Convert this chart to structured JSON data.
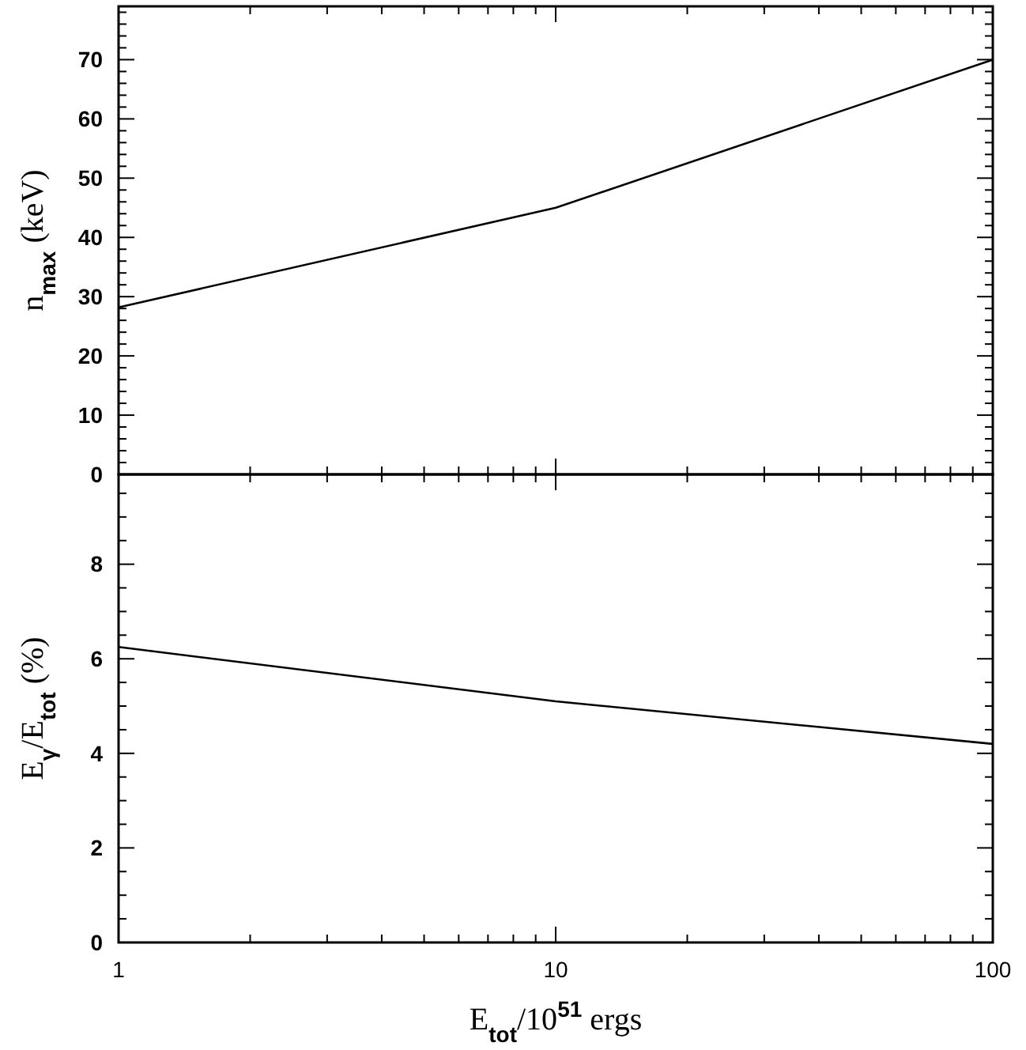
{
  "chart_data": [
    {
      "type": "line",
      "ylabel": "n$_{max}$ (keV)",
      "log": "x",
      "xlim": [
        1,
        100
      ],
      "ylim": [
        0,
        79
      ],
      "tick_labels": "y",
      "xticks": [
        1,
        {
          "value": 2,
          "label": null
        },
        {
          "value": 3,
          "label": null
        },
        {
          "value": 4,
          "label": null
        },
        {
          "value": 5,
          "label": null
        },
        {
          "value": 6,
          "label": null
        },
        {
          "value": 7,
          "label": null
        },
        {
          "value": 8,
          "label": null
        },
        {
          "value": 9,
          "label": null
        },
        10,
        {
          "value": 20,
          "label": null
        },
        {
          "value": 30,
          "label": null
        },
        {
          "value": 40,
          "label": null
        },
        {
          "value": 50,
          "label": null
        },
        {
          "value": 60,
          "label": null
        },
        {
          "value": 70,
          "label": null
        },
        {
          "value": 80,
          "label": null
        },
        {
          "value": 90,
          "label": null
        },
        100
      ],
      "yticks": [
        0,
        {
          "value": 2,
          "label": null
        },
        {
          "value": 4,
          "label": null
        },
        {
          "value": 6,
          "label": null
        },
        {
          "value": 8,
          "label": null
        },
        10,
        {
          "value": 12,
          "label": null
        },
        {
          "value": 14,
          "label": null
        },
        {
          "value": 16,
          "label": null
        },
        {
          "value": 18,
          "label": null
        },
        20,
        {
          "value": 22,
          "label": null
        },
        {
          "value": 24,
          "label": null
        },
        {
          "value": 26,
          "label": null
        },
        {
          "value": 28,
          "label": null
        },
        30,
        {
          "value": 32,
          "label": null
        },
        {
          "value": 34,
          "label": null
        },
        {
          "value": 36,
          "label": null
        },
        {
          "value": 38,
          "label": null
        },
        40,
        {
          "value": 42,
          "label": null
        },
        {
          "value": 44,
          "label": null
        },
        {
          "value": 46,
          "label": null
        },
        {
          "value": 48,
          "label": null
        },
        50,
        {
          "value": 52,
          "label": null
        },
        {
          "value": 54,
          "label": null
        },
        {
          "value": 56,
          "label": null
        },
        {
          "value": 58,
          "label": null
        },
        60,
        {
          "value": 62,
          "label": null
        },
        {
          "value": 64,
          "label": null
        },
        {
          "value": 66,
          "label": null
        },
        {
          "value": 68,
          "label": null
        },
        70,
        {
          "value": 72,
          "label": null
        },
        {
          "value": 74,
          "label": null
        },
        {
          "value": 76,
          "label": null
        },
        {
          "value": 78,
          "label": null
        }
      ],
      "x": [
        1,
        10,
        100
      ],
      "series": [
        {
          "color": "#000000",
          "values": [
            28.2,
            45,
            70
          ]
        }
      ],
      "line_style": "solid"
    },
    {
      "type": "line",
      "xlabel": "E$_{tot}$/10$^{51}$ ergs",
      "ylabel": "E$_{γ}$/E$_{tot}$ (%)",
      "log": "x",
      "xlim": [
        1,
        100
      ],
      "ylim": [
        0,
        9.9
      ],
      "xticks": [
        1,
        {
          "value": 2,
          "label": null
        },
        {
          "value": 3,
          "label": null
        },
        {
          "value": 4,
          "label": null
        },
        {
          "value": 5,
          "label": null
        },
        {
          "value": 6,
          "label": null
        },
        {
          "value": 7,
          "label": null
        },
        {
          "value": 8,
          "label": null
        },
        {
          "value": 9,
          "label": null
        },
        10,
        {
          "value": 20,
          "label": null
        },
        {
          "value": 30,
          "label": null
        },
        {
          "value": 40,
          "label": null
        },
        {
          "value": 50,
          "label": null
        },
        {
          "value": 60,
          "label": null
        },
        {
          "value": 70,
          "label": null
        },
        {
          "value": 80,
          "label": null
        },
        {
          "value": 90,
          "label": null
        },
        100
      ],
      "yticks": [
        0,
        {
          "value": 0.5,
          "label": null
        },
        {
          "value": 1,
          "label": null
        },
        {
          "value": 1.5,
          "label": null
        },
        2,
        {
          "value": 2.5,
          "label": null
        },
        {
          "value": 3,
          "label": null
        },
        {
          "value": 3.5,
          "label": null
        },
        4,
        {
          "value": 4.5,
          "label": null
        },
        {
          "value": 5,
          "label": null
        },
        {
          "value": 5.5,
          "label": null
        },
        6,
        {
          "value": 6.5,
          "label": null
        },
        {
          "value": 7,
          "label": null
        },
        {
          "value": 7.5,
          "label": null
        },
        8,
        {
          "value": 8.5,
          "label": null
        },
        {
          "value": 9,
          "label": null
        },
        {
          "value": 9.5,
          "label": null
        }
      ],
      "x": [
        1,
        10,
        100
      ],
      "series": [
        {
          "color": "#000000",
          "values": [
            6.25,
            5.1,
            4.2
          ]
        }
      ],
      "line_style": "solid"
    }
  ]
}
